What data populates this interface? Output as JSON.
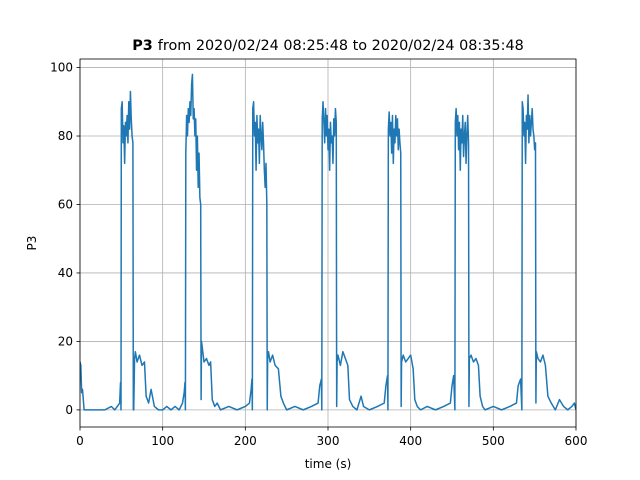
{
  "chart_data": {
    "type": "line",
    "title_bold": "P3",
    "title": "from 2020/02/24 08:25:48 to 2020/02/24 08:35:48",
    "xlabel": "time (s)",
    "ylabel": "P3",
    "color": "#1f77b4",
    "xlim": [
      0,
      600
    ],
    "ylim": [
      -5,
      102.5
    ],
    "xticks": [
      0,
      100,
      200,
      300,
      400,
      500,
      600
    ],
    "yticks": [
      0,
      20,
      40,
      60,
      80,
      100
    ],
    "grid": true,
    "x": [
      0,
      1,
      2,
      3,
      5,
      10,
      20,
      30,
      38,
      42,
      48,
      49,
      49.6,
      50,
      51,
      52,
      53,
      54,
      55,
      56,
      57,
      58,
      59,
      60,
      61,
      62,
      63,
      64,
      64.5,
      65,
      66,
      67,
      69,
      72,
      75,
      78,
      80,
      83,
      86,
      90,
      95,
      100,
      105,
      110,
      115,
      120,
      124,
      126,
      127,
      127.5,
      128,
      129,
      130,
      131,
      132,
      133,
      134,
      135,
      136,
      137,
      138,
      139,
      140,
      141,
      142,
      143,
      144,
      145,
      146,
      146.5,
      147,
      148,
      150,
      153,
      156,
      158,
      160,
      163,
      166,
      170,
      180,
      190,
      200,
      205,
      207,
      208,
      208.5,
      209,
      210,
      211,
      212,
      213,
      214,
      215,
      216,
      217,
      218,
      219,
      220,
      221,
      222,
      223,
      224,
      225,
      226,
      226.5,
      227,
      228,
      230,
      233,
      236,
      240,
      243,
      246,
      250,
      260,
      270,
      280,
      288,
      290,
      292,
      292.5,
      293,
      294,
      295,
      296,
      297,
      298,
      299,
      300,
      301,
      302,
      303,
      304,
      305,
      306,
      307,
      308,
      309,
      310,
      310.5,
      311,
      312,
      315,
      318,
      321,
      324,
      326,
      330,
      335,
      340,
      343,
      350,
      360,
      368,
      370,
      372,
      372.5,
      373,
      374,
      375,
      376,
      377,
      378,
      379,
      380,
      381,
      382,
      383,
      384,
      385,
      386,
      387,
      388,
      388.5,
      389,
      391,
      394,
      397,
      400,
      403,
      405,
      408,
      412,
      420,
      430,
      440,
      448,
      450,
      452,
      453.5,
      454,
      455,
      456,
      457,
      458,
      459,
      460,
      461,
      462,
      463,
      464,
      465,
      466,
      467,
      468,
      469,
      470,
      470.5,
      471,
      473,
      476,
      479,
      482,
      484,
      487,
      490,
      500,
      510,
      520,
      528,
      530,
      533,
      534.5,
      535,
      536,
      537,
      538,
      539,
      540,
      541,
      542,
      543,
      544,
      545,
      546,
      547,
      548,
      549,
      550,
      551,
      551.5,
      552,
      554,
      557,
      560,
      563,
      566,
      570,
      575,
      580,
      585,
      590,
      595,
      598,
      600
    ],
    "values": [
      14,
      13,
      5,
      6,
      0,
      0,
      0,
      0,
      1,
      0,
      2,
      8,
      0,
      88,
      90,
      78,
      83,
      72,
      84,
      80,
      86,
      78,
      90,
      82,
      93,
      85,
      80,
      78,
      0,
      0,
      15,
      17,
      14,
      16,
      13,
      14,
      4,
      2,
      6,
      1,
      0,
      0,
      1,
      0,
      1,
      0,
      2,
      5,
      8,
      0,
      75,
      86,
      80,
      88,
      84,
      90,
      86,
      95,
      98,
      85,
      88,
      80,
      85,
      70,
      80,
      65,
      75,
      62,
      60,
      3,
      20,
      18,
      14,
      15,
      13,
      14,
      3,
      1,
      2,
      0,
      1,
      0,
      1,
      2,
      6,
      9,
      0,
      88,
      90,
      80,
      84,
      70,
      86,
      78,
      82,
      72,
      86,
      80,
      76,
      84,
      78,
      70,
      65,
      72,
      60,
      0,
      15,
      17,
      14,
      16,
      13,
      12,
      4,
      2,
      0,
      1,
      0,
      1,
      2,
      7,
      9,
      0,
      85,
      90,
      84,
      78,
      88,
      80,
      86,
      76,
      82,
      70,
      84,
      78,
      80,
      72,
      85,
      80,
      88,
      84,
      1,
      14,
      16,
      13,
      17,
      15,
      13,
      3,
      1,
      0,
      4,
      1,
      0,
      1,
      2,
      7,
      10,
      0,
      82,
      87,
      80,
      84,
      75,
      86,
      72,
      82,
      78,
      86,
      80,
      85,
      76,
      82,
      78,
      75,
      1,
      14,
      16,
      14,
      15,
      16,
      12,
      3,
      1,
      0,
      1,
      0,
      1,
      2,
      7,
      10,
      0,
      84,
      88,
      80,
      86,
      76,
      84,
      70,
      82,
      78,
      86,
      74,
      80,
      84,
      72,
      80,
      86,
      78,
      1,
      15,
      16,
      14,
      15,
      13,
      4,
      1,
      0,
      1,
      0,
      1,
      2,
      7,
      9,
      0,
      90,
      88,
      80,
      84,
      72,
      86,
      82,
      92,
      78,
      86,
      80,
      84,
      88,
      82,
      80,
      76,
      78,
      2,
      17,
      15,
      14,
      16,
      13,
      4,
      2,
      0,
      3,
      1,
      0,
      1,
      2,
      0
    ]
  }
}
